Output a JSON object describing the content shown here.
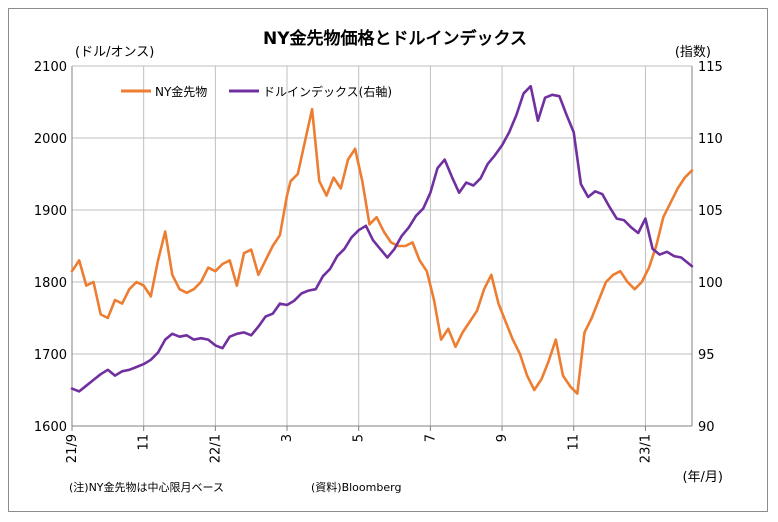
{
  "chart_data": {
    "type": "line",
    "title": "NY金先物価格とドルインデックス",
    "left_axis_unit": "(ドル/オンス)",
    "right_axis_unit": "(指数)",
    "x_axis_unit": "(年/月)",
    "ylim_left": [
      1600,
      2100
    ],
    "ylim_right": [
      90,
      115
    ],
    "yticks_left": [
      "1600",
      "1700",
      "1800",
      "1900",
      "2000",
      "2100"
    ],
    "yticks_right": [
      "90",
      "95",
      "100",
      "105",
      "110",
      "115"
    ],
    "x_ticks": [
      {
        "label": "21/9",
        "t": 0
      },
      {
        "label": "11",
        "t": 2
      },
      {
        "label": "22/1",
        "t": 4
      },
      {
        "label": "3",
        "t": 6
      },
      {
        "label": "5",
        "t": 8
      },
      {
        "label": "7",
        "t": 10
      },
      {
        "label": "9",
        "t": 12
      },
      {
        "label": "11",
        "t": 14
      },
      {
        "label": "23/1",
        "t": 16
      }
    ],
    "x_range": [
      0,
      17.3
    ],
    "grid": true,
    "legend_position": "top-left",
    "series": [
      {
        "name": "NY金先物",
        "axis": "left",
        "color": "#ED7D31",
        "x": [
          0,
          0.2,
          0.4,
          0.6,
          0.8,
          1.0,
          1.2,
          1.4,
          1.6,
          1.8,
          2.0,
          2.2,
          2.4,
          2.6,
          2.8,
          3.0,
          3.2,
          3.4,
          3.6,
          3.8,
          4.0,
          4.2,
          4.4,
          4.6,
          4.8,
          5.0,
          5.2,
          5.4,
          5.6,
          5.8,
          6.0,
          6.1,
          6.3,
          6.5,
          6.7,
          6.9,
          7.1,
          7.3,
          7.5,
          7.7,
          7.9,
          8.1,
          8.3,
          8.5,
          8.7,
          8.9,
          9.1,
          9.3,
          9.5,
          9.7,
          9.9,
          10.1,
          10.3,
          10.5,
          10.7,
          10.9,
          11.1,
          11.3,
          11.5,
          11.7,
          11.9,
          12.1,
          12.3,
          12.5,
          12.7,
          12.9,
          13.1,
          13.3,
          13.5,
          13.7,
          13.9,
          14.1,
          14.3,
          14.5,
          14.7,
          14.9,
          15.1,
          15.3,
          15.5,
          15.7,
          15.9,
          16.1,
          16.3,
          16.5,
          16.7,
          16.9,
          17.1,
          17.3
        ],
        "values": [
          1815,
          1830,
          1795,
          1800,
          1755,
          1750,
          1775,
          1770,
          1790,
          1800,
          1795,
          1780,
          1830,
          1870,
          1810,
          1790,
          1785,
          1790,
          1800,
          1820,
          1815,
          1825,
          1830,
          1795,
          1840,
          1845,
          1810,
          1830,
          1850,
          1865,
          1920,
          1940,
          1950,
          1995,
          2040,
          1940,
          1920,
          1945,
          1930,
          1970,
          1985,
          1940,
          1880,
          1890,
          1870,
          1855,
          1850,
          1850,
          1855,
          1830,
          1815,
          1775,
          1720,
          1735,
          1710,
          1730,
          1745,
          1760,
          1790,
          1810,
          1770,
          1745,
          1720,
          1700,
          1670,
          1650,
          1665,
          1690,
          1720,
          1670,
          1655,
          1645,
          1730,
          1750,
          1775,
          1800,
          1810,
          1815,
          1800,
          1790,
          1800,
          1820,
          1850,
          1890,
          1910,
          1930,
          1945,
          1955
        ]
      },
      {
        "name": "ドルインデックス(右軸)",
        "axis": "right",
        "color": "#7030A0",
        "x": [
          0,
          0.2,
          0.4,
          0.6,
          0.8,
          1.0,
          1.2,
          1.4,
          1.6,
          1.8,
          2.0,
          2.2,
          2.4,
          2.6,
          2.8,
          3.0,
          3.2,
          3.4,
          3.6,
          3.8,
          4.0,
          4.2,
          4.4,
          4.6,
          4.8,
          5.0,
          5.2,
          5.4,
          5.6,
          5.8,
          6.0,
          6.2,
          6.4,
          6.6,
          6.8,
          7.0,
          7.2,
          7.4,
          7.6,
          7.8,
          8.0,
          8.2,
          8.4,
          8.6,
          8.8,
          9.0,
          9.2,
          9.4,
          9.6,
          9.8,
          10.0,
          10.2,
          10.4,
          10.6,
          10.8,
          11.0,
          11.2,
          11.4,
          11.6,
          11.8,
          12.0,
          12.2,
          12.4,
          12.6,
          12.8,
          13.0,
          13.2,
          13.4,
          13.6,
          13.8,
          14.0,
          14.2,
          14.4,
          14.6,
          14.8,
          15.0,
          15.2,
          15.4,
          15.6,
          15.8,
          16.0,
          16.2,
          16.4,
          16.6,
          16.8,
          17.0,
          17.3
        ],
        "values": [
          92.6,
          92.4,
          92.8,
          93.2,
          93.6,
          93.9,
          93.5,
          93.8,
          93.9,
          94.1,
          94.3,
          94.6,
          95.1,
          96.0,
          96.4,
          96.2,
          96.3,
          96.0,
          96.1,
          96.0,
          95.6,
          95.4,
          96.2,
          96.4,
          96.5,
          96.3,
          96.9,
          97.6,
          97.8,
          98.5,
          98.4,
          98.7,
          99.2,
          99.4,
          99.5,
          100.4,
          100.9,
          101.8,
          102.3,
          103.1,
          103.6,
          103.9,
          102.9,
          102.3,
          101.7,
          102.3,
          103.2,
          103.8,
          104.6,
          105.1,
          106.2,
          107.9,
          108.5,
          107.3,
          106.2,
          106.9,
          106.7,
          107.2,
          108.2,
          108.8,
          109.5,
          110.4,
          111.6,
          113.1,
          113.6,
          111.2,
          112.8,
          113.0,
          112.9,
          111.6,
          110.4,
          106.8,
          105.9,
          106.3,
          106.1,
          105.2,
          104.4,
          104.3,
          103.8,
          103.4,
          104.4,
          102.3,
          101.9,
          102.1,
          101.8,
          101.7,
          101.1
        ]
      }
    ]
  },
  "notes": {
    "left": "(注)NY金先物は中心限月ベース",
    "right": "(資料)Bloomberg"
  }
}
